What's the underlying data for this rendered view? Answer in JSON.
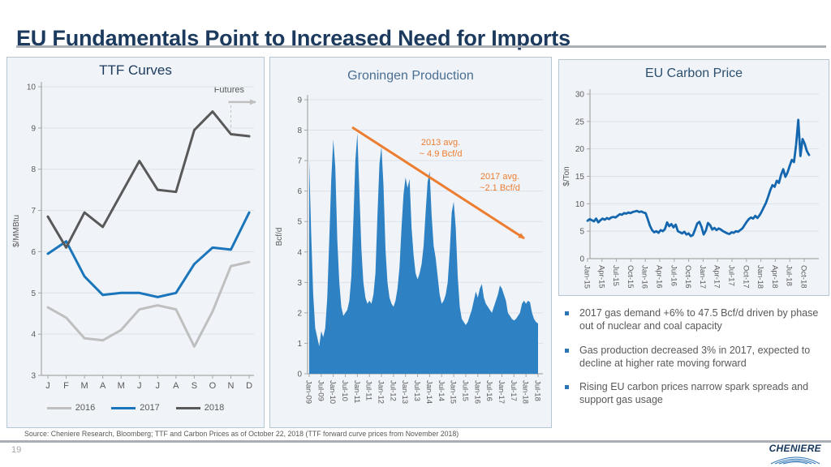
{
  "slide": {
    "title": "EU Fundamentals Point to Increased Need for Imports"
  },
  "chart_data": [
    {
      "id": "ttf",
      "type": "line",
      "title": "TTF Curves",
      "ylabel": "$/MMBtu",
      "ylim": [
        3,
        10
      ],
      "yticks": [
        3,
        4,
        5,
        6,
        7,
        8,
        9,
        10
      ],
      "categories": [
        "J",
        "F",
        "M",
        "A",
        "M",
        "J",
        "J",
        "A",
        "S",
        "O",
        "N",
        "D"
      ],
      "series": [
        {
          "name": "2016",
          "color": "#BFBFBF",
          "values": [
            4.65,
            4.4,
            3.9,
            3.85,
            4.1,
            4.6,
            4.7,
            4.6,
            3.7,
            4.55,
            5.65,
            5.75
          ]
        },
        {
          "name": "2017",
          "color": "#1B75BB",
          "values": [
            5.95,
            6.25,
            5.4,
            4.95,
            5.0,
            5.0,
            4.9,
            5.0,
            5.7,
            6.1,
            6.05,
            6.95
          ]
        },
        {
          "name": "2018",
          "color": "#595959",
          "values": [
            6.85,
            6.1,
            6.95,
            6.6,
            7.4,
            8.2,
            7.5,
            7.45,
            8.95,
            9.4,
            8.85,
            8.8
          ]
        }
      ],
      "annotation": {
        "label": "Futures",
        "arrow_color": "#BFBFBF",
        "dash_month_index": 10,
        "arrow_y": 9.63
      },
      "legend_position": "bottom",
      "grid": true
    },
    {
      "id": "groningen",
      "type": "area",
      "title": "Groningen Production",
      "ylabel": "Bcf/d",
      "ylim": [
        0,
        9
      ],
      "yticks": [
        0,
        1,
        2,
        3,
        4,
        5,
        6,
        7,
        8,
        9
      ],
      "fill_color": "#2E82C4",
      "xticks": [
        "Jan-09",
        "Jul-09",
        "Jan-10",
        "Jul-10",
        "Jan-11",
        "Jul-11",
        "Jan-12",
        "Jul-12",
        "Jan-13",
        "Jul-13",
        "Jan-14",
        "Jul-14",
        "Jan-15",
        "Jul-15",
        "Jan-16",
        "Jul-16",
        "Jan-17",
        "Jul-17",
        "Jan-18",
        "Jul-18"
      ],
      "values": [
        7.0,
        4.6,
        2.6,
        1.5,
        1.2,
        0.9,
        1.4,
        1.2,
        1.5,
        2.5,
        4.4,
        6.4,
        7.7,
        6.8,
        4.4,
        3.0,
        2.2,
        1.9,
        2.0,
        2.1,
        2.4,
        3.2,
        5.0,
        7.0,
        7.9,
        6.0,
        4.1,
        3.0,
        2.5,
        2.3,
        2.4,
        2.3,
        2.6,
        3.3,
        5.2,
        6.9,
        7.45,
        6.2,
        4.1,
        3.0,
        2.5,
        2.3,
        2.2,
        2.4,
        2.8,
        3.5,
        4.8,
        5.9,
        6.45,
        6.1,
        6.4,
        4.8,
        3.9,
        3.3,
        3.1,
        3.3,
        3.6,
        4.2,
        5.3,
        6.3,
        6.65,
        5.2,
        4.2,
        3.8,
        3.2,
        2.6,
        2.3,
        2.4,
        2.6,
        3.0,
        4.0,
        5.3,
        5.65,
        4.8,
        3.2,
        2.2,
        1.8,
        1.7,
        1.6,
        1.7,
        1.9,
        2.1,
        2.4,
        2.7,
        2.5,
        2.8,
        2.95,
        2.5,
        2.3,
        2.2,
        2.1,
        2.0,
        2.2,
        2.4,
        2.6,
        2.9,
        2.8,
        2.6,
        2.4,
        2.0,
        1.9,
        1.8,
        1.75,
        1.8,
        1.9,
        2.0,
        2.3,
        2.4,
        2.3,
        2.4,
        2.35,
        2.0,
        1.8,
        1.7,
        1.65
      ],
      "annotations": [
        {
          "text": "2013 avg.\n~ 4.9 Bcf/d"
        },
        {
          "text": "2017 avg.\n~2.1 Bcf/d"
        }
      ],
      "arrow_color": "#ED7D31",
      "grid": true
    },
    {
      "id": "carbon",
      "type": "line",
      "title": "EU Carbon Price",
      "ylabel": "$/Ton",
      "ylim": [
        0,
        30
      ],
      "yticks": [
        0,
        5,
        10,
        15,
        20,
        25,
        30
      ],
      "color": "#1467AE",
      "xticks": [
        "Jan-15",
        "Apr-15",
        "Jul-15",
        "Oct-15",
        "Jan-16",
        "Apr-16",
        "Jul-16",
        "Oct-16",
        "Jan-17",
        "Apr-17",
        "Jul-17",
        "Oct-17",
        "Jan-18",
        "Apr-18",
        "Jul-18",
        "Oct-18"
      ],
      "values": [
        6.9,
        7.2,
        7.0,
        6.8,
        7.3,
        6.6,
        7.0,
        7.3,
        7.1,
        7.4,
        7.2,
        7.5,
        7.6,
        7.5,
        7.8,
        8.1,
        8.0,
        8.3,
        8.2,
        8.4,
        8.3,
        8.5,
        8.6,
        8.7,
        8.5,
        8.6,
        8.4,
        8.3,
        7.2,
        6.0,
        5.2,
        4.8,
        5.0,
        4.7,
        5.2,
        5.0,
        5.4,
        6.6,
        5.9,
        6.3,
        5.7,
        6.2,
        5.0,
        4.8,
        4.6,
        4.9,
        4.4,
        4.6,
        4.1,
        4.3,
        5.3,
        6.4,
        6.7,
        5.8,
        4.4,
        5.1,
        6.5,
        6.1,
        5.3,
        5.6,
        5.2,
        5.5,
        5.3,
        5.0,
        4.8,
        4.6,
        4.5,
        4.8,
        4.7,
        5.0,
        4.9,
        5.2,
        5.5,
        6.1,
        6.7,
        7.2,
        7.5,
        7.3,
        7.8,
        7.4,
        7.9,
        8.6,
        9.4,
        10.2,
        11.3,
        12.5,
        13.4,
        13.1,
        14.2,
        13.8,
        15.3,
        16.3,
        14.9,
        15.7,
        16.9,
        18.0,
        17.6,
        20.8,
        25.3,
        18.7,
        21.8,
        20.9,
        19.6,
        18.9
      ],
      "grid": true
    }
  ],
  "bullets": [
    "2017 gas demand +6% to 47.5 Bcf/d driven by phase out of nuclear and coal capacity",
    "Gas production decreased 3% in 2017, expected to decline at higher rate moving forward",
    "Rising  EU carbon prices narrow spark spreads and support gas usage"
  ],
  "bullet_color": "#2E75B6",
  "footer": {
    "source": "Source: Cheniere Research, Bloomberg; TTF  and Carbon Prices as of October 22, 2018 (TTF forward curve prices from November 2018)",
    "page": "19"
  },
  "logo": {
    "text": "CHENIERE",
    "wave_color": "#2E75B6"
  }
}
